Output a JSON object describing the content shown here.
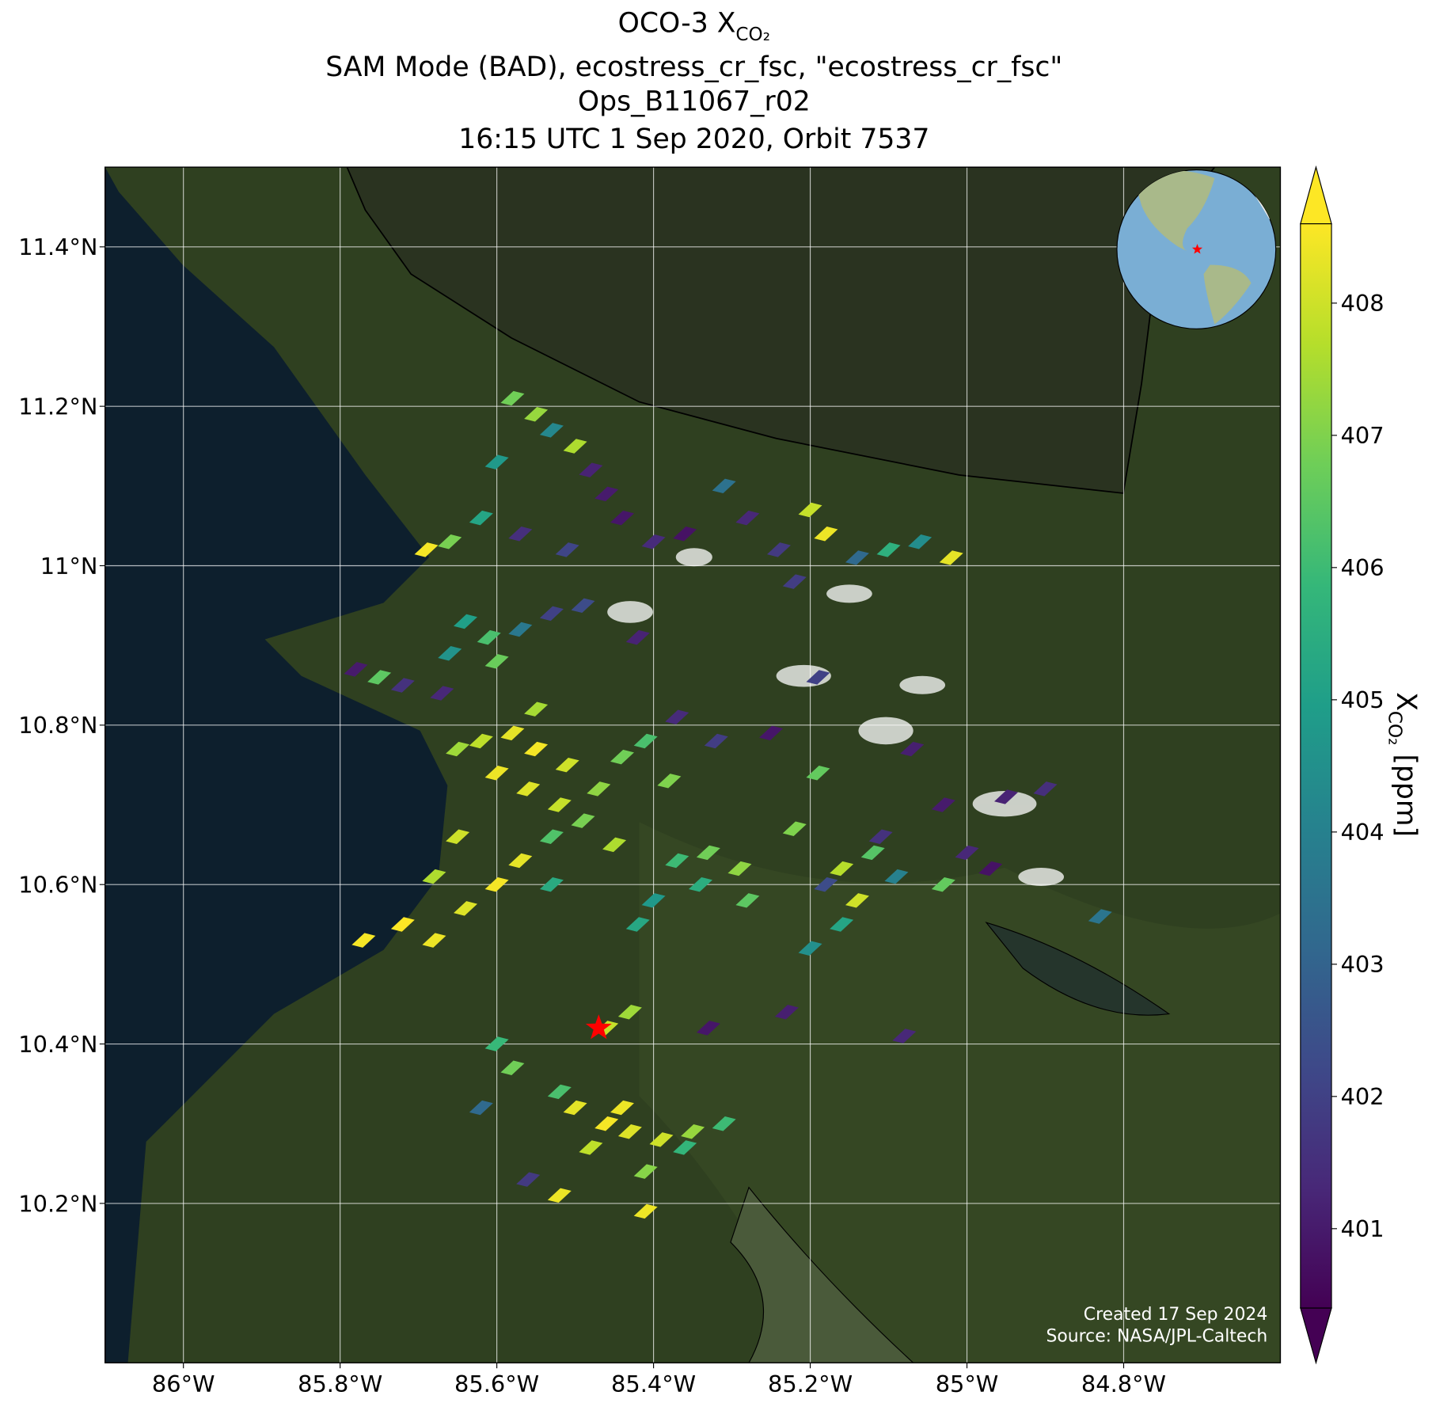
{
  "chart_data": {
    "type": "map",
    "title": {
      "main": "OCO-3 X",
      "subscript": "CO₂"
    },
    "subtitle_lines": [
      "SAM Mode (BAD), ecostress_cr_fsc, \"ecostress_cr_fsc\"",
      "Ops_B11067_r02",
      "16:15 UTC 1 Sep 2020, Orbit 7537"
    ],
    "xlim": [
      -86.1,
      -84.6
    ],
    "ylim": [
      10.0,
      11.5
    ],
    "xticks": [
      {
        "value": -86,
        "label": "86°W"
      },
      {
        "value": -85.8,
        "label": "85.8°W"
      },
      {
        "value": -85.6,
        "label": "85.6°W"
      },
      {
        "value": -85.4,
        "label": "85.4°W"
      },
      {
        "value": -85.2,
        "label": "85.2°W"
      },
      {
        "value": -85,
        "label": "85°W"
      },
      {
        "value": -84.8,
        "label": "84.8°W"
      }
    ],
    "yticks": [
      {
        "value": 10.2,
        "label": "10.2°N"
      },
      {
        "value": 10.4,
        "label": "10.4°N"
      },
      {
        "value": 10.6,
        "label": "10.6°N"
      },
      {
        "value": 10.8,
        "label": "10.8°N"
      },
      {
        "value": 11,
        "label": "11°N"
      },
      {
        "value": 11.2,
        "label": "11.2°N"
      },
      {
        "value": 11.4,
        "label": "11.4°N"
      }
    ],
    "grid": true,
    "clim": [
      400.4,
      408.6
    ],
    "cticks": [
      401,
      402,
      403,
      404,
      405,
      406,
      407,
      408
    ],
    "colorbar_label": {
      "main": "X",
      "subscript": "CO₂",
      "unit": " [ppm]"
    },
    "colormap": [
      "#440154",
      "#482878",
      "#3e4989",
      "#31688e",
      "#26828e",
      "#1f9e89",
      "#35b779",
      "#6ece58",
      "#b5de2b",
      "#fde725"
    ],
    "site": {
      "lon": -85.47,
      "lat": 10.42,
      "color": "#ff0000"
    },
    "soundings": [
      {
        "lon": -85.58,
        "lat": 11.21,
        "xco2": 406.8
      },
      {
        "lon": -85.55,
        "lat": 11.19,
        "xco2": 407.3
      },
      {
        "lon": -85.53,
        "lat": 11.17,
        "xco2": 404.2
      },
      {
        "lon": -85.6,
        "lat": 11.13,
        "xco2": 404.8
      },
      {
        "lon": -85.5,
        "lat": 11.15,
        "xco2": 407.6
      },
      {
        "lon": -85.48,
        "lat": 11.12,
        "xco2": 401.2
      },
      {
        "lon": -85.46,
        "lat": 11.09,
        "xco2": 401.0
      },
      {
        "lon": -85.62,
        "lat": 11.06,
        "xco2": 405.2
      },
      {
        "lon": -85.57,
        "lat": 11.04,
        "xco2": 401.5
      },
      {
        "lon": -85.51,
        "lat": 11.02,
        "xco2": 402.1
      },
      {
        "lon": -85.44,
        "lat": 11.06,
        "xco2": 400.9
      },
      {
        "lon": -85.4,
        "lat": 11.03,
        "xco2": 401.4
      },
      {
        "lon": -85.36,
        "lat": 11.04,
        "xco2": 400.8
      },
      {
        "lon": -85.31,
        "lat": 11.1,
        "xco2": 403.5
      },
      {
        "lon": -85.28,
        "lat": 11.06,
        "xco2": 401.3
      },
      {
        "lon": -85.24,
        "lat": 11.02,
        "xco2": 401.8
      },
      {
        "lon": -85.2,
        "lat": 11.07,
        "xco2": 407.9
      },
      {
        "lon": -85.18,
        "lat": 11.04,
        "xco2": 408.4
      },
      {
        "lon": -85.14,
        "lat": 11.01,
        "xco2": 403.2
      },
      {
        "lon": -85.1,
        "lat": 11.02,
        "xco2": 405.6
      },
      {
        "lon": -85.06,
        "lat": 11.03,
        "xco2": 404.4
      },
      {
        "lon": -85.02,
        "lat": 11.01,
        "xco2": 408.3
      },
      {
        "lon": -85.22,
        "lat": 10.98,
        "xco2": 401.9
      },
      {
        "lon": -85.69,
        "lat": 11.02,
        "xco2": 408.5
      },
      {
        "lon": -85.66,
        "lat": 11.03,
        "xco2": 406.9
      },
      {
        "lon": -85.64,
        "lat": 10.93,
        "xco2": 405.0
      },
      {
        "lon": -85.61,
        "lat": 10.91,
        "xco2": 406.2
      },
      {
        "lon": -85.57,
        "lat": 10.92,
        "xco2": 403.7
      },
      {
        "lon": -85.53,
        "lat": 10.94,
        "xco2": 402.0
      },
      {
        "lon": -85.66,
        "lat": 10.89,
        "xco2": 404.6
      },
      {
        "lon": -85.6,
        "lat": 10.88,
        "xco2": 406.7
      },
      {
        "lon": -85.78,
        "lat": 10.87,
        "xco2": 401.0
      },
      {
        "lon": -85.75,
        "lat": 10.86,
        "xco2": 406.5
      },
      {
        "lon": -85.72,
        "lat": 10.85,
        "xco2": 401.6
      },
      {
        "lon": -85.67,
        "lat": 10.84,
        "xco2": 401.3
      },
      {
        "lon": -85.49,
        "lat": 10.95,
        "xco2": 402.3
      },
      {
        "lon": -85.62,
        "lat": 10.78,
        "xco2": 407.8
      },
      {
        "lon": -85.58,
        "lat": 10.79,
        "xco2": 408.3
      },
      {
        "lon": -85.55,
        "lat": 10.77,
        "xco2": 408.5
      },
      {
        "lon": -85.51,
        "lat": 10.75,
        "xco2": 408.0
      },
      {
        "lon": -85.6,
        "lat": 10.74,
        "xco2": 408.4
      },
      {
        "lon": -85.56,
        "lat": 10.72,
        "xco2": 408.2
      },
      {
        "lon": -85.52,
        "lat": 10.7,
        "xco2": 407.9
      },
      {
        "lon": -85.47,
        "lat": 10.72,
        "xco2": 407.2
      },
      {
        "lon": -85.44,
        "lat": 10.76,
        "xco2": 406.8
      },
      {
        "lon": -85.41,
        "lat": 10.78,
        "xco2": 406.2
      },
      {
        "lon": -85.55,
        "lat": 10.82,
        "xco2": 407.5
      },
      {
        "lon": -85.49,
        "lat": 10.68,
        "xco2": 406.9
      },
      {
        "lon": -85.65,
        "lat": 10.77,
        "xco2": 407.4
      },
      {
        "lon": -85.38,
        "lat": 10.73,
        "xco2": 407.0
      },
      {
        "lon": -85.53,
        "lat": 10.66,
        "xco2": 406.3
      },
      {
        "lon": -85.45,
        "lat": 10.65,
        "xco2": 407.6
      },
      {
        "lon": -85.37,
        "lat": 10.63,
        "xco2": 406.0
      },
      {
        "lon": -85.33,
        "lat": 10.64,
        "xco2": 406.8
      },
      {
        "lon": -85.29,
        "lat": 10.62,
        "xco2": 407.2
      },
      {
        "lon": -85.34,
        "lat": 10.6,
        "xco2": 405.5
      },
      {
        "lon": -85.4,
        "lat": 10.58,
        "xco2": 404.8
      },
      {
        "lon": -85.28,
        "lat": 10.58,
        "xco2": 406.5
      },
      {
        "lon": -85.42,
        "lat": 10.55,
        "xco2": 405.3
      },
      {
        "lon": -85.22,
        "lat": 10.67,
        "xco2": 407.0
      },
      {
        "lon": -85.19,
        "lat": 10.74,
        "xco2": 406.6
      },
      {
        "lon": -85.16,
        "lat": 10.62,
        "xco2": 407.7
      },
      {
        "lon": -85.12,
        "lat": 10.64,
        "xco2": 406.4
      },
      {
        "lon": -85.09,
        "lat": 10.61,
        "xco2": 404.0
      },
      {
        "lon": -85.14,
        "lat": 10.58,
        "xco2": 408.0
      },
      {
        "lon": -85.18,
        "lat": 10.6,
        "xco2": 402.3
      },
      {
        "lon": -85.11,
        "lat": 10.66,
        "xco2": 401.6
      },
      {
        "lon": -85.16,
        "lat": 10.55,
        "xco2": 405.2
      },
      {
        "lon": -85.2,
        "lat": 10.52,
        "xco2": 404.5
      },
      {
        "lon": -85.03,
        "lat": 10.7,
        "xco2": 401.0
      },
      {
        "lon": -85.0,
        "lat": 10.64,
        "xco2": 401.3
      },
      {
        "lon": -84.97,
        "lat": 10.62,
        "xco2": 400.8
      },
      {
        "lon": -85.03,
        "lat": 10.6,
        "xco2": 406.6
      },
      {
        "lon": -84.95,
        "lat": 10.71,
        "xco2": 401.2
      },
      {
        "lon": -84.9,
        "lat": 10.72,
        "xco2": 401.5
      },
      {
        "lon": -84.83,
        "lat": 10.56,
        "xco2": 403.6
      },
      {
        "lon": -85.07,
        "lat": 10.77,
        "xco2": 401.1
      },
      {
        "lon": -85.42,
        "lat": 10.91,
        "xco2": 401.2
      },
      {
        "lon": -85.37,
        "lat": 10.81,
        "xco2": 401.4
      },
      {
        "lon": -85.32,
        "lat": 10.78,
        "xco2": 401.9
      },
      {
        "lon": -85.25,
        "lat": 10.79,
        "xco2": 400.9
      },
      {
        "lon": -85.19,
        "lat": 10.86,
        "xco2": 402.0
      },
      {
        "lon": -85.23,
        "lat": 10.44,
        "xco2": 401.1
      },
      {
        "lon": -85.33,
        "lat": 10.42,
        "xco2": 400.9
      },
      {
        "lon": -85.08,
        "lat": 10.41,
        "xco2": 401.3
      },
      {
        "lon": -85.77,
        "lat": 10.53,
        "xco2": 408.5
      },
      {
        "lon": -85.72,
        "lat": 10.55,
        "xco2": 408.6
      },
      {
        "lon": -85.68,
        "lat": 10.53,
        "xco2": 408.4
      },
      {
        "lon": -85.64,
        "lat": 10.57,
        "xco2": 408.2
      },
      {
        "lon": -85.6,
        "lat": 10.6,
        "xco2": 408.5
      },
      {
        "lon": -85.57,
        "lat": 10.63,
        "xco2": 408.3
      },
      {
        "lon": -85.53,
        "lat": 10.6,
        "xco2": 405.4
      },
      {
        "lon": -85.65,
        "lat": 10.66,
        "xco2": 408.0
      },
      {
        "lon": -85.68,
        "lat": 10.61,
        "xco2": 407.6
      },
      {
        "lon": -85.6,
        "lat": 10.4,
        "xco2": 405.9
      },
      {
        "lon": -85.58,
        "lat": 10.37,
        "xco2": 406.8
      },
      {
        "lon": -85.5,
        "lat": 10.32,
        "xco2": 408.3
      },
      {
        "lon": -85.46,
        "lat": 10.3,
        "xco2": 408.5
      },
      {
        "lon": -85.43,
        "lat": 10.29,
        "xco2": 408.2
      },
      {
        "lon": -85.39,
        "lat": 10.28,
        "xco2": 408.0
      },
      {
        "lon": -85.35,
        "lat": 10.29,
        "xco2": 407.3
      },
      {
        "lon": -85.48,
        "lat": 10.27,
        "xco2": 407.8
      },
      {
        "lon": -85.52,
        "lat": 10.34,
        "xco2": 406.2
      },
      {
        "lon": -85.44,
        "lat": 10.32,
        "xco2": 408.4
      },
      {
        "lon": -85.31,
        "lat": 10.3,
        "xco2": 406.0
      },
      {
        "lon": -85.41,
        "lat": 10.24,
        "xco2": 407.1
      },
      {
        "lon": -85.56,
        "lat": 10.23,
        "xco2": 401.8
      },
      {
        "lon": -85.52,
        "lat": 10.21,
        "xco2": 408.4
      },
      {
        "lon": -85.43,
        "lat": 10.44,
        "xco2": 407.4
      },
      {
        "lon": -85.46,
        "lat": 10.42,
        "xco2": 407.9
      },
      {
        "lon": -85.36,
        "lat": 10.27,
        "xco2": 405.8
      },
      {
        "lon": -85.62,
        "lat": 10.32,
        "xco2": 403.2
      },
      {
        "lon": -85.41,
        "lat": 10.19,
        "xco2": 408.4
      }
    ],
    "footer_lines": [
      "Created 17 Sep 2024",
      "Source: NASA/JPL-Caltech"
    ]
  }
}
